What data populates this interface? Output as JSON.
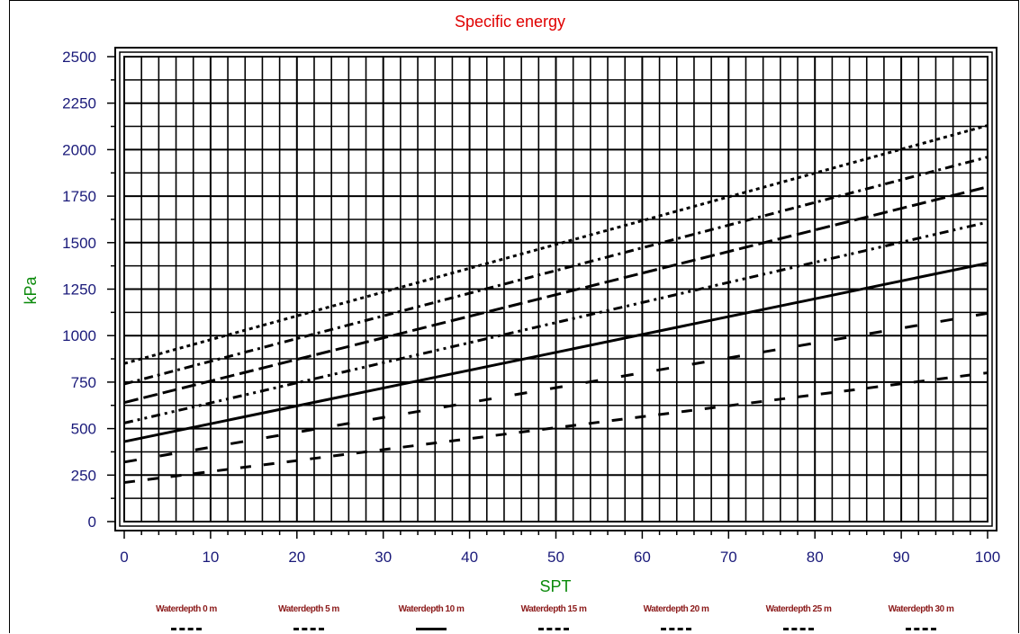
{
  "chart_data": {
    "type": "line",
    "title": "Specific energy",
    "xlabel": "SPT",
    "ylabel": "kPa",
    "xlim": [
      0,
      100
    ],
    "ylim": [
      0,
      2500
    ],
    "x_ticks": [
      "0",
      "10",
      "20",
      "30",
      "40",
      "50",
      "60",
      "70",
      "80",
      "90",
      "100"
    ],
    "y_ticks": [
      "0",
      "250",
      "500",
      "750",
      "1000",
      "1250",
      "1500",
      "1750",
      "2000",
      "2250",
      "2500"
    ],
    "grid": true,
    "legend_position": "bottom",
    "series": [
      {
        "name": "Waterdepth 0 m",
        "x": [
          0,
          100
        ],
        "y": [
          210,
          800
        ],
        "dash": "12 14"
      },
      {
        "name": "Waterdepth 5 m",
        "x": [
          0,
          100
        ],
        "y": [
          320,
          1120
        ],
        "dash": "14 26"
      },
      {
        "name": "Waterdepth 10 m",
        "x": [
          0,
          100
        ],
        "y": [
          430,
          1390
        ],
        "dash": ""
      },
      {
        "name": "Waterdepth 15 m",
        "x": [
          0,
          100
        ],
        "y": [
          530,
          1610
        ],
        "dash": "10 5 3 5 3 5"
      },
      {
        "name": "Waterdepth 20 m",
        "x": [
          0,
          100
        ],
        "y": [
          640,
          1800
        ],
        "dash": "16 6"
      },
      {
        "name": "Waterdepth 25 m",
        "x": [
          0,
          100
        ],
        "y": [
          740,
          1960
        ],
        "dash": "10 5 3 5"
      },
      {
        "name": "Waterdepth 30 m",
        "x": [
          0,
          100
        ],
        "y": [
          850,
          2130
        ],
        "dash": "4 4"
      }
    ],
    "colors": {
      "title": "#e00000",
      "axis_labels": "#0b8a0b",
      "tick_labels": "#1a1a7a",
      "legend_text": "#8b1a1a",
      "lines": "#000000"
    }
  }
}
